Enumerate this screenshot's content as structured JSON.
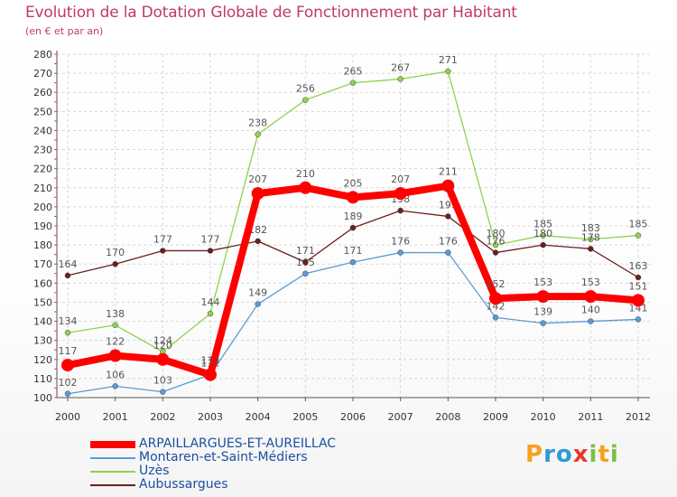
{
  "chart_data": {
    "type": "line",
    "title": "Evolution de la Dotation Globale de Fonctionnement par Habitant",
    "subtitle": "(en € et par an)",
    "xlabel": "",
    "ylabel": "",
    "x": [
      "2000",
      "2001",
      "2002",
      "2003",
      "2004",
      "2005",
      "2006",
      "2007",
      "2008",
      "2009",
      "2010",
      "2011",
      "2012"
    ],
    "ylim": [
      100,
      280
    ],
    "yticks": [
      100,
      110,
      120,
      130,
      140,
      150,
      160,
      170,
      180,
      190,
      200,
      210,
      220,
      230,
      240,
      250,
      260,
      270,
      280
    ],
    "grid": true,
    "legend_position": "bottom-left",
    "series": [
      {
        "name": "ARPAILLARGUES-ET-AUREILLAC",
        "color": "#ff0000",
        "emphasis": true,
        "values": [
          117,
          122,
          120,
          112,
          207,
          210,
          205,
          207,
          211,
          152,
          153,
          153,
          151
        ]
      },
      {
        "name": "Montaren-et-Saint-Médiers",
        "color": "#5b9bd5",
        "values": [
          102,
          106,
          103,
          112,
          149,
          165,
          171,
          176,
          176,
          142,
          139,
          140,
          141
        ]
      },
      {
        "name": "Uzès",
        "color": "#8dd34e",
        "values": [
          134,
          138,
          124,
          144,
          238,
          256,
          265,
          267,
          271,
          180,
          185,
          183,
          185
        ]
      },
      {
        "name": "Aubussargues",
        "color": "#6b1f1f",
        "values": [
          164,
          170,
          177,
          177,
          182,
          171,
          189,
          198,
          195,
          176,
          180,
          178,
          163
        ]
      }
    ]
  },
  "brand": {
    "letters": [
      "P",
      "r",
      "o",
      "x",
      "i",
      "t",
      "i"
    ],
    "colors": [
      "#f7a21b",
      "#2e9bd6",
      "#2e9bd6",
      "#e8392c",
      "#7ac143",
      "#f7a21b",
      "#7ac143"
    ]
  }
}
